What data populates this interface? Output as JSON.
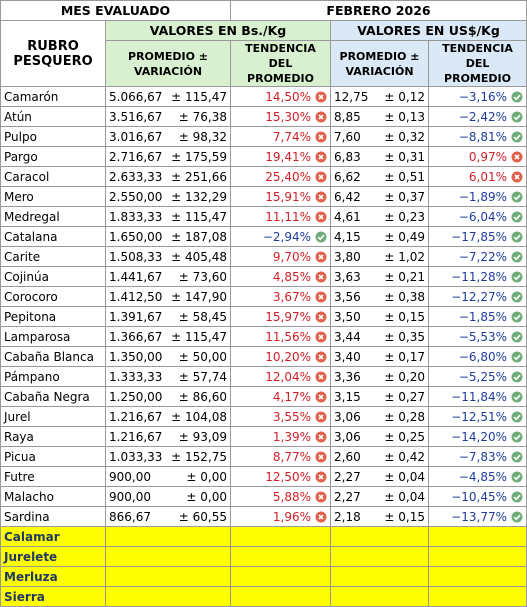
{
  "header": {
    "period_label": "MES EVALUADO",
    "period": "FEBRERO 2026",
    "item_label": "RUBRO PESQUERO",
    "bs_label": "VALORES EN Bs./Kg",
    "usd_label": "VALORES EN US$/Kg",
    "avg_label": "PROMEDIO ± VARIACIÓN",
    "trend_label": "TENDENCIA DEL PROMEDIO"
  },
  "table": {
    "rows": [
      [
        "Camarón",
        "5.066,67",
        "± 115,47",
        "14,50%",
        "12,75",
        "± 0,12",
        "−3,16%"
      ],
      [
        "Atún",
        "3.516,67",
        "± 76,38",
        "15,30%",
        "8,85",
        "± 0,13",
        "−2,42%"
      ],
      [
        "Pulpo",
        "3.016,67",
        "± 98,32",
        "7,74%",
        "7,60",
        "± 0,32",
        "−8,81%"
      ],
      [
        "Pargo",
        "2.716,67",
        "± 175,59",
        "19,41%",
        "6,83",
        "± 0,31",
        "0,97%"
      ],
      [
        "Caracol",
        "2.633,33",
        "± 251,66",
        "25,40%",
        "6,62",
        "± 0,51",
        "6,01%"
      ],
      [
        "Mero",
        "2.550,00",
        "± 132,29",
        "15,91%",
        "6,42",
        "± 0,37",
        "−1,89%"
      ],
      [
        "Medregal",
        "1.833,33",
        "± 115,47",
        "11,11%",
        "4,61",
        "± 0,23",
        "−6,04%"
      ],
      [
        "Catalana",
        "1.650,00",
        "± 187,08",
        "−2,94%",
        "4,15",
        "± 0,49",
        "−17,85%"
      ],
      [
        "Carite",
        "1.508,33",
        "± 405,48",
        "9,70%",
        "3,80",
        "± 1,02",
        "−7,22%"
      ],
      [
        "Cojinúa",
        "1.441,67",
        "± 73,60",
        "4,85%",
        "3,63",
        "± 0,21",
        "−11,28%"
      ],
      [
        "Corocoro",
        "1.412,50",
        "± 147,90",
        "3,67%",
        "3,56",
        "± 0,38",
        "−12,27%"
      ],
      [
        "Pepitona",
        "1.391,67",
        "± 58,45",
        "15,97%",
        "3,50",
        "± 0,15",
        "−1,85%"
      ],
      [
        "Lamparosa",
        "1.366,67",
        "± 115,47",
        "11,56%",
        "3,44",
        "± 0,35",
        "−5,53%"
      ],
      [
        "Cabaña Blanca",
        "1.350,00",
        "± 50,00",
        "10,20%",
        "3,40",
        "± 0,17",
        "−6,80%"
      ],
      [
        "Pámpano",
        "1.333,33",
        "± 57,74",
        "12,04%",
        "3,36",
        "± 0,20",
        "−5,25%"
      ],
      [
        "Cabaña Negra",
        "1.250,00",
        "± 86,60",
        "4,17%",
        "3,15",
        "± 0,27",
        "−11,84%"
      ],
      [
        "Jurel",
        "1.216,67",
        "± 104,08",
        "3,55%",
        "3,06",
        "± 0,28",
        "−12,51%"
      ],
      [
        "Raya",
        "1.216,67",
        "± 93,09",
        "1,39%",
        "3,06",
        "± 0,25",
        "−14,20%"
      ],
      [
        "Picua",
        "1.033,33",
        "± 152,75",
        "8,77%",
        "2,60",
        "± 0,42",
        "−7,83%"
      ],
      [
        "Futre",
        "900,00",
        "± 0,00",
        "12,50%",
        "2,27",
        "± 0,04",
        "−4,85%"
      ],
      [
        "Malacho",
        "900,00",
        "± 0,00",
        "5,88%",
        "2,27",
        "± 0,04",
        "−10,45%"
      ],
      [
        "Sardina",
        "866,67",
        "± 60,55",
        "1,96%",
        "2,18",
        "± 0,15",
        "−13,77%"
      ]
    ],
    "pending": [
      "Calamar",
      "Jurelete",
      "Merluza",
      "Sierra"
    ]
  }
}
